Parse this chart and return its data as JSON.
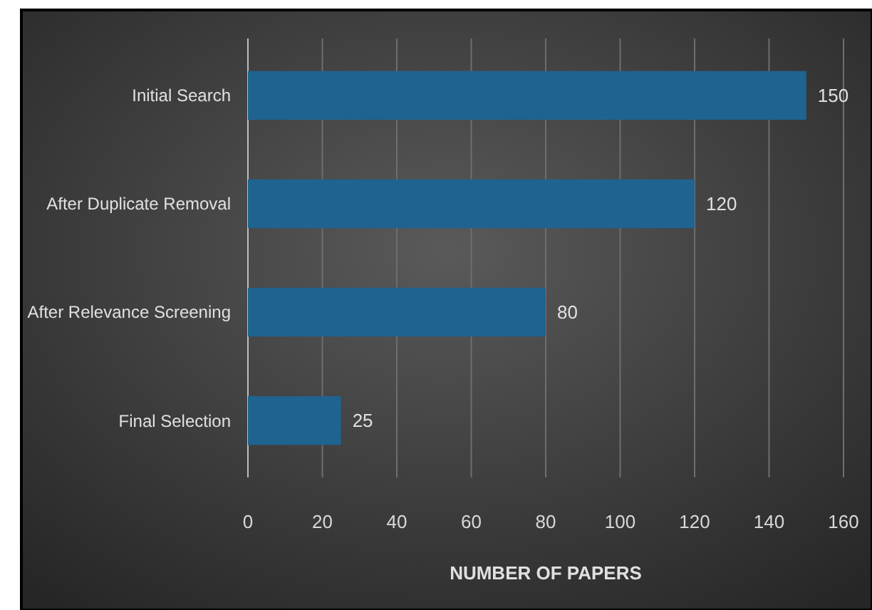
{
  "chart_data": {
    "type": "bar",
    "orientation": "horizontal",
    "xlabel": "NUMBER OF PAPERS",
    "categories": [
      "Initial Search",
      "After Duplicate Removal",
      "After Relevance Screening",
      "Final Selection"
    ],
    "values": [
      150,
      120,
      80,
      25
    ],
    "color": "#1f6391",
    "xlim": [
      0,
      160
    ],
    "xticks": [
      0,
      20,
      40,
      60,
      80,
      100,
      120,
      140,
      160
    ],
    "grid": "x",
    "data_labels": true
  }
}
